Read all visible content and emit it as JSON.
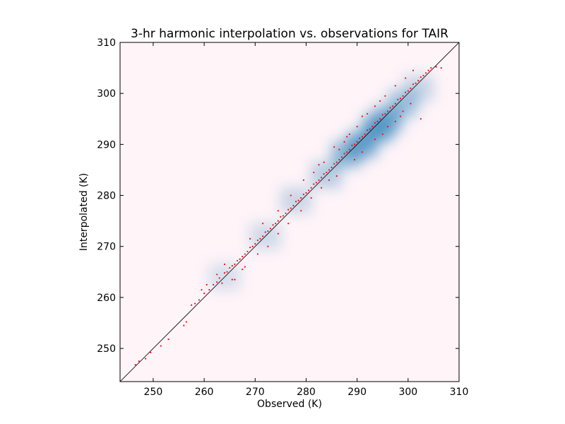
{
  "chart_data": {
    "type": "scatter",
    "title": "3-hr harmonic interpolation vs. observations for TAIR",
    "xlabel": "Observed (K)",
    "ylabel": "Interpolated (K)",
    "xlim": [
      243.5,
      310
    ],
    "ylim": [
      243.5,
      310
    ],
    "xticks": [
      250,
      260,
      270,
      280,
      290,
      300,
      310
    ],
    "yticks": [
      250,
      260,
      270,
      280,
      290,
      300,
      310
    ],
    "grid": false,
    "reference_line": "1:1 line (y = x)",
    "colors": {
      "points": "#ee1111",
      "density_background": "#fff4f8",
      "density_high": "#2a7fb8",
      "reference_line": "#000000"
    },
    "density_regions": [
      {
        "x": 264,
        "y": 264,
        "w": 6,
        "h": 5,
        "level": 0.25
      },
      {
        "x": 272,
        "y": 272,
        "w": 6,
        "h": 5,
        "level": 0.3
      },
      {
        "x": 278,
        "y": 279,
        "w": 6,
        "h": 5,
        "level": 0.35
      },
      {
        "x": 284,
        "y": 284,
        "w": 6,
        "h": 5,
        "level": 0.45
      },
      {
        "x": 288,
        "y": 288,
        "w": 6,
        "h": 5,
        "level": 0.7
      },
      {
        "x": 291,
        "y": 290,
        "w": 6,
        "h": 5,
        "level": 0.85
      },
      {
        "x": 294,
        "y": 293,
        "w": 6,
        "h": 5,
        "level": 0.9
      },
      {
        "x": 296,
        "y": 295,
        "w": 6,
        "h": 5,
        "level": 0.7
      },
      {
        "x": 299,
        "y": 298,
        "w": 6,
        "h": 5,
        "level": 0.55
      },
      {
        "x": 302,
        "y": 301,
        "w": 6,
        "h": 5,
        "level": 0.35
      }
    ],
    "series": [
      {
        "points": [
          [
            246.5,
            246.8
          ],
          [
            247.2,
            247.5
          ],
          [
            248.5,
            248.0
          ],
          [
            249.5,
            249.2
          ],
          [
            251.5,
            250.5
          ],
          [
            253.0,
            251.8
          ],
          [
            256.0,
            254.5
          ],
          [
            256.5,
            255.2
          ],
          [
            257.5,
            258.5
          ],
          [
            258.2,
            258.8
          ],
          [
            259.0,
            259.5
          ],
          [
            260.0,
            260.8
          ],
          [
            261.0,
            261.5
          ],
          [
            261.8,
            262.5
          ],
          [
            262.5,
            263.0
          ],
          [
            263.0,
            263.8
          ],
          [
            263.5,
            262.8
          ],
          [
            264.0,
            264.8
          ],
          [
            264.5,
            265.0
          ],
          [
            265.0,
            265.8
          ],
          [
            265.5,
            266.2
          ],
          [
            266.0,
            266.5
          ],
          [
            266.5,
            267.2
          ],
          [
            267.0,
            267.5
          ],
          [
            267.5,
            268.0
          ],
          [
            268.0,
            268.5
          ],
          [
            268.5,
            269.0
          ],
          [
            269.0,
            269.8
          ],
          [
            269.5,
            270.0
          ],
          [
            270.0,
            270.5
          ],
          [
            270.5,
            271.2
          ],
          [
            271.0,
            271.5
          ],
          [
            271.5,
            272.0
          ],
          [
            272.0,
            272.8
          ],
          [
            272.5,
            273.0
          ],
          [
            273.0,
            273.5
          ],
          [
            273.5,
            274.2
          ],
          [
            274.0,
            274.5
          ],
          [
            274.5,
            275.0
          ],
          [
            275.0,
            275.8
          ],
          [
            275.5,
            276.0
          ],
          [
            276.0,
            276.5
          ],
          [
            276.5,
            277.2
          ],
          [
            277.0,
            277.5
          ],
          [
            277.5,
            278.0
          ],
          [
            278.0,
            278.8
          ],
          [
            278.5,
            279.0
          ],
          [
            279.0,
            279.5
          ],
          [
            279.5,
            280.2
          ],
          [
            280.0,
            280.5
          ],
          [
            280.5,
            281.0
          ],
          [
            281.0,
            281.5
          ],
          [
            281.5,
            282.2
          ],
          [
            282.0,
            282.5
          ],
          [
            282.5,
            283.0
          ],
          [
            283.0,
            283.5
          ],
          [
            283.5,
            284.2
          ],
          [
            284.0,
            284.5
          ],
          [
            284.5,
            285.0
          ],
          [
            285.0,
            285.5
          ],
          [
            285.5,
            286.2
          ],
          [
            286.0,
            286.5
          ],
          [
            286.5,
            287.0
          ],
          [
            287.0,
            287.5
          ],
          [
            287.5,
            288.2
          ],
          [
            288.0,
            288.5
          ],
          [
            288.5,
            289.0
          ],
          [
            289.0,
            289.8
          ],
          [
            289.5,
            290.0
          ],
          [
            290.0,
            290.5
          ],
          [
            290.5,
            291.2
          ],
          [
            291.0,
            291.5
          ],
          [
            291.5,
            292.0
          ],
          [
            292.0,
            292.8
          ],
          [
            292.5,
            293.0
          ],
          [
            293.0,
            293.5
          ],
          [
            293.5,
            294.2
          ],
          [
            294.0,
            294.5
          ],
          [
            294.5,
            295.0
          ],
          [
            295.0,
            295.8
          ],
          [
            295.5,
            296.0
          ],
          [
            296.0,
            296.5
          ],
          [
            296.5,
            297.2
          ],
          [
            297.0,
            297.5
          ],
          [
            297.5,
            298.0
          ],
          [
            298.0,
            298.8
          ],
          [
            298.5,
            299.0
          ],
          [
            299.0,
            299.5
          ],
          [
            299.5,
            300.2
          ],
          [
            300.0,
            300.5
          ],
          [
            300.5,
            301.0
          ],
          [
            301.0,
            301.8
          ],
          [
            301.5,
            302.0
          ],
          [
            302.0,
            302.5
          ],
          [
            302.5,
            303.2
          ],
          [
            303.0,
            303.5
          ],
          [
            303.5,
            304.0
          ],
          [
            304.0,
            304.5
          ],
          [
            304.5,
            305.0
          ],
          [
            305.5,
            305.2
          ],
          [
            306.5,
            305.0
          ],
          [
            296.0,
            293.5
          ],
          [
            297.5,
            294.5
          ],
          [
            298.5,
            295.5
          ],
          [
            299.0,
            296.5
          ],
          [
            293.5,
            297.5
          ],
          [
            292.0,
            296.0
          ],
          [
            290.0,
            293.5
          ],
          [
            288.0,
            291.5
          ],
          [
            286.5,
            289.0
          ],
          [
            284.5,
            283.0
          ],
          [
            283.0,
            281.5
          ],
          [
            281.0,
            279.5
          ],
          [
            279.0,
            277.0
          ],
          [
            276.5,
            274.5
          ],
          [
            274.5,
            272.5
          ],
          [
            272.5,
            270.0
          ],
          [
            270.5,
            268.5
          ],
          [
            268.0,
            266.0
          ],
          [
            266.0,
            263.5
          ],
          [
            271.5,
            274.5
          ],
          [
            274.5,
            277.0
          ],
          [
            277.0,
            280.0
          ],
          [
            279.5,
            283.0
          ],
          [
            282.5,
            286.0
          ],
          [
            285.5,
            289.5
          ],
          [
            288.5,
            292.0
          ],
          [
            291.0,
            295.5
          ],
          [
            294.5,
            298.5
          ],
          [
            297.5,
            301.5
          ],
          [
            299.5,
            303.0
          ],
          [
            301.0,
            304.5
          ],
          [
            302.5,
            295.0
          ],
          [
            295.5,
            299.5
          ],
          [
            300.5,
            298.0
          ],
          [
            286.0,
            283.8
          ],
          [
            289.5,
            287.0
          ],
          [
            291.0,
            288.5
          ],
          [
            293.5,
            291.0
          ],
          [
            295.0,
            292.0
          ],
          [
            269.0,
            271.5
          ],
          [
            264.0,
            266.5
          ],
          [
            262.5,
            264.5
          ],
          [
            260.5,
            262.5
          ],
          [
            259.5,
            261.5
          ],
          [
            265.5,
            263.5
          ],
          [
            267.5,
            265.5
          ],
          [
            281.5,
            284.5
          ],
          [
            283.5,
            286.5
          ],
          [
            287.5,
            290.5
          ]
        ]
      }
    ]
  }
}
